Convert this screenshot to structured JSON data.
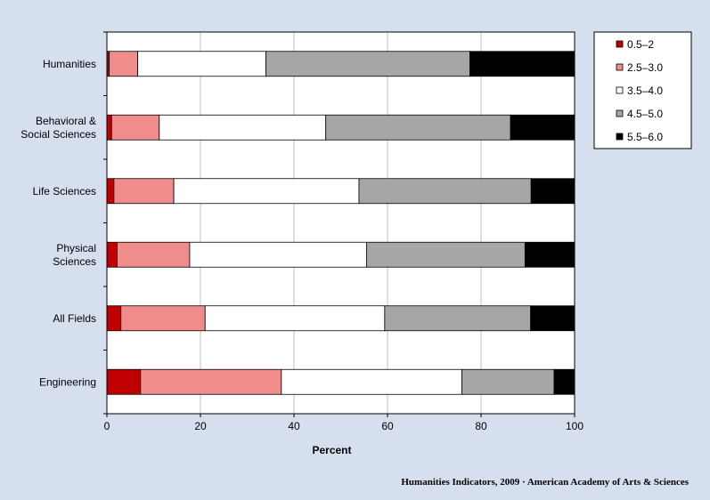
{
  "chart_data": {
    "type": "bar",
    "orientation": "horizontal",
    "stacked": true,
    "title": "",
    "xlabel": "Percent",
    "ylabel": "",
    "xlim": [
      0,
      100
    ],
    "xticks": [
      0,
      20,
      40,
      60,
      80,
      100
    ],
    "grid": "vertical",
    "legend_position": "top-right",
    "categories": [
      "Humanities",
      "Behavioral & Social Sciences",
      "Life Sciences",
      "Physical Sciences",
      "All Fields",
      "Engineering"
    ],
    "category_lines": [
      [
        "Humanities"
      ],
      [
        "Behavioral &",
        "Social Sciences"
      ],
      [
        "Life Sciences"
      ],
      [
        "Physical",
        "Sciences"
      ],
      [
        "All Fields"
      ],
      [
        "Engineering"
      ]
    ],
    "series": [
      {
        "name": "0.5–2",
        "color": "#c00000",
        "values": [
          0.5,
          1.0,
          1.5,
          2.2,
          3.0,
          7.2
        ]
      },
      {
        "name": "2.5–3.0",
        "color": "#f08c8c",
        "values": [
          6.1,
          10.2,
          12.8,
          15.5,
          18.0,
          30.1
        ]
      },
      {
        "name": "3.5–4.0",
        "color": "#ffffff",
        "values": [
          27.4,
          35.6,
          39.6,
          37.8,
          38.4,
          38.6
        ]
      },
      {
        "name": "4.5–5.0",
        "color": "#a6a6a6",
        "values": [
          43.6,
          39.5,
          36.8,
          33.9,
          31.2,
          19.7
        ]
      },
      {
        "name": "5.5–6.0",
        "color": "#000000",
        "values": [
          22.4,
          13.7,
          9.3,
          10.6,
          9.4,
          4.4
        ]
      }
    ]
  },
  "footer": "Humanities Indicators, 2009 · American Academy of Arts & Sciences"
}
